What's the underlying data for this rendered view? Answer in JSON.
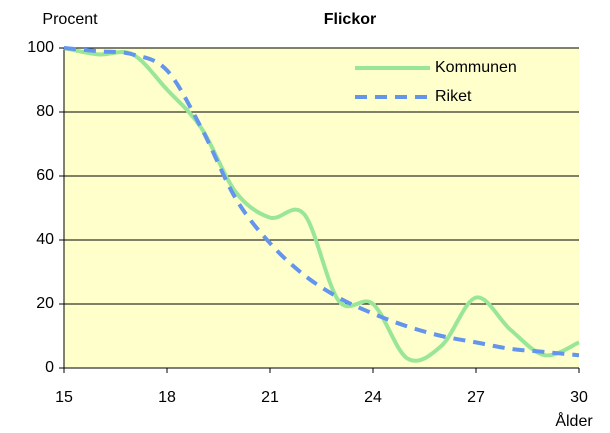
{
  "chart_data": {
    "type": "line",
    "title": "Flickor",
    "ylabel": "Procent",
    "xlabel": "Ålder",
    "x": [
      15,
      16,
      17,
      18,
      19,
      20,
      21,
      22,
      23,
      24,
      25,
      26,
      27,
      28,
      29,
      30
    ],
    "series": [
      {
        "name": "Kommunen",
        "color": "#99e699",
        "style": "solid",
        "values": [
          100,
          98,
          98,
          87,
          75,
          55,
          47,
          48,
          21,
          20,
          3,
          7,
          22,
          12,
          4,
          8
        ]
      },
      {
        "name": "Riket",
        "color": "#6495ed",
        "style": "dashed",
        "values": [
          100,
          99,
          98,
          93,
          75,
          53,
          39,
          29,
          22,
          17,
          13,
          10,
          8,
          6,
          5,
          4
        ]
      }
    ],
    "xlim": [
      15,
      30
    ],
    "xticks": [
      15,
      18,
      21,
      24,
      27,
      30
    ],
    "ylim": [
      0,
      100
    ],
    "yticks": [
      0,
      20,
      40,
      60,
      80,
      100
    ],
    "grid": true,
    "legend": "upper right"
  }
}
